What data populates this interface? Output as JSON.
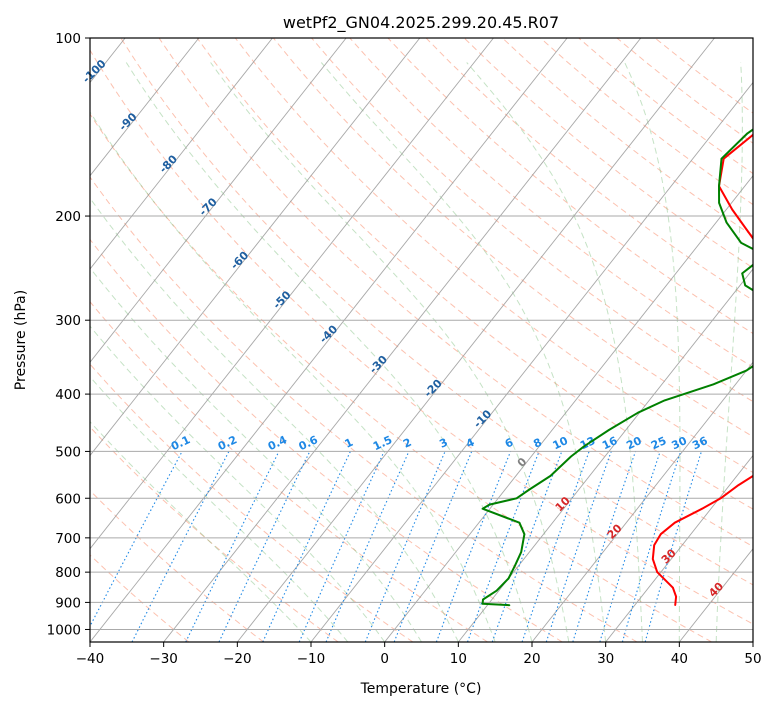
{
  "chart_data": {
    "type": "line",
    "title": "wetPf2_GN04.2025.299.20.45.R07",
    "xlabel": "Temperature (°C)",
    "ylabel": "Pressure (hPa)",
    "xlim": [
      -40,
      50
    ],
    "ylim": [
      1050,
      100
    ],
    "x_ticks": [
      -40,
      -30,
      -20,
      -10,
      0,
      10,
      20,
      30,
      40,
      50
    ],
    "y_ticks": [
      100,
      200,
      300,
      400,
      500,
      600,
      700,
      800,
      900,
      1000
    ],
    "isotherm_labels": [
      "-100",
      "-90",
      "-80",
      "-70",
      "-60",
      "-50",
      "-40",
      "-30",
      "-20",
      "-10",
      "0",
      "10",
      "20",
      "30",
      "40"
    ],
    "mixing_ratio_labels": [
      "0.1",
      "0.2",
      "0.4",
      "0.6",
      "1",
      "1.5",
      "2",
      "3",
      "4",
      "6",
      "8",
      "10",
      "13",
      "16",
      "20",
      "25",
      "30",
      "36"
    ],
    "series": [
      {
        "name": "Temperature",
        "color": "#ff0000",
        "points": [
          [
            35.5,
            910
          ],
          [
            34.7,
            880
          ],
          [
            33.3,
            850
          ],
          [
            29.5,
            800
          ],
          [
            27.5,
            760
          ],
          [
            26.2,
            720
          ],
          [
            25.9,
            690
          ],
          [
            26.6,
            660
          ],
          [
            28.8,
            625
          ],
          [
            30.2,
            600
          ],
          [
            31.2,
            570
          ],
          [
            33.2,
            530
          ],
          [
            34.4,
            500
          ],
          [
            33.2,
            450
          ],
          [
            33.0,
            410
          ],
          [
            31.4,
            380
          ],
          [
            29.9,
            350
          ],
          [
            27.0,
            320
          ],
          [
            22.4,
            300
          ],
          [
            19.8,
            284
          ],
          [
            17.5,
            270
          ],
          [
            13.5,
            250
          ],
          [
            10.2,
            233
          ],
          [
            4.7,
            210
          ],
          [
            0.8,
            195
          ],
          [
            -3.5,
            178
          ],
          [
            -5.8,
            160
          ],
          [
            -4.3,
            145
          ],
          [
            -2.1,
            132
          ],
          [
            -2.7,
            120
          ],
          [
            -0.5,
            110
          ],
          [
            2.9,
            100
          ]
        ]
      },
      {
        "name": "Dewpoint",
        "color": "#008000",
        "points": [
          [
            13.0,
            910
          ],
          [
            9.2,
            905
          ],
          [
            8.8,
            890
          ],
          [
            9.7,
            860
          ],
          [
            10.0,
            820
          ],
          [
            9.5,
            780
          ],
          [
            8.9,
            740
          ],
          [
            7.4,
            690
          ],
          [
            5.5,
            660
          ],
          [
            -1.0,
            625
          ],
          [
            -0.5,
            615
          ],
          [
            2.5,
            600
          ],
          [
            3.3,
            580
          ],
          [
            4.7,
            550
          ],
          [
            5.4,
            510
          ],
          [
            6.1,
            490
          ],
          [
            7.7,
            460
          ],
          [
            9.8,
            430
          ],
          [
            12.1,
            410
          ],
          [
            17.0,
            385
          ],
          [
            20.0,
            365
          ],
          [
            21.0,
            350
          ],
          [
            21.3,
            320
          ],
          [
            21.2,
            305
          ],
          [
            19.8,
            284
          ],
          [
            14.8,
            275
          ],
          [
            10.7,
            262
          ],
          [
            9.0,
            250
          ],
          [
            10.2,
            233
          ],
          [
            5.6,
            222
          ],
          [
            1.4,
            205
          ],
          [
            -1.7,
            190
          ],
          [
            -3.5,
            178
          ],
          [
            -6.1,
            160
          ],
          [
            -5.3,
            145
          ],
          [
            -3.2,
            132
          ],
          [
            -4.5,
            120
          ],
          [
            -2.8,
            110
          ],
          [
            0.1,
            100
          ]
        ]
      }
    ]
  }
}
